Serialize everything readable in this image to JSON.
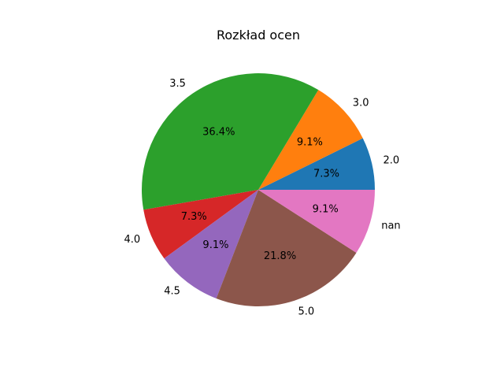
{
  "chart_data": {
    "type": "pie",
    "title": "Rozkład ocen",
    "categories": [
      "2.0",
      "3.0",
      "3.5",
      "4.0",
      "4.5",
      "5.0",
      "nan"
    ],
    "values": [
      7.3,
      9.1,
      36.4,
      7.3,
      9.1,
      21.8,
      9.1
    ],
    "value_labels": [
      "7.3%",
      "9.1%",
      "36.4%",
      "7.3%",
      "9.1%",
      "21.8%",
      "9.1%"
    ],
    "colors": [
      "#1f77b4",
      "#ff7f0e",
      "#2ca02c",
      "#d62728",
      "#9467bd",
      "#8c564b",
      "#e377c2"
    ],
    "start_angle_deg": 0,
    "direction": "counterclockwise",
    "legend": "none"
  }
}
